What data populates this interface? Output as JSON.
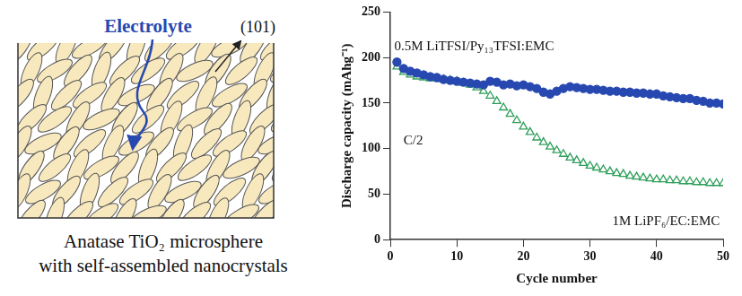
{
  "diagram": {
    "electrolyte_label": "Electrolyte",
    "plane_label": "(101)",
    "caption": [
      "Anatase TiO₂ microsphere",
      "with self-assembled nanocrystals"
    ]
  },
  "chart_data": {
    "type": "scatter",
    "x_label": "Cycle number",
    "y_label": "Discharge capacity (mAhg⁻¹)",
    "annotations": [
      "0.5M LiTFSI/Py₁₃TFSI:EMC",
      "C/2",
      "1M LiPF₆/EC:EMC"
    ],
    "x": [
      1,
      2,
      3,
      4,
      5,
      6,
      7,
      8,
      9,
      10,
      11,
      12,
      13,
      14,
      15,
      16,
      17,
      18,
      19,
      20,
      21,
      22,
      23,
      24,
      25,
      26,
      27,
      28,
      29,
      30,
      31,
      32,
      33,
      34,
      35,
      36,
      37,
      38,
      39,
      40,
      41,
      42,
      43,
      44,
      45,
      46,
      47,
      48,
      49,
      50
    ],
    "series": [
      {
        "name": "0.5M LiTFSI/Py₁₃TFSI:EMC",
        "color": "#2748b0",
        "marker": "filled-circle",
        "values": [
          195,
          188,
          185,
          183,
          181,
          179,
          178,
          176,
          175,
          174,
          173,
          172,
          171,
          170,
          174,
          173,
          170,
          171,
          169,
          170,
          168,
          166,
          162,
          160,
          163,
          166,
          168,
          167,
          166,
          165,
          165,
          164,
          163,
          163,
          162,
          162,
          161,
          161,
          160,
          160,
          158,
          157,
          156,
          155,
          155,
          153,
          152,
          150,
          150,
          149
        ]
      },
      {
        "name": "1M LiPF₆/EC:EMC",
        "color": "#2e9e5a",
        "marker": "open-triangle",
        "values": [
          190,
          184,
          181,
          179,
          178,
          177,
          177,
          176,
          175,
          174,
          172,
          170,
          167,
          163,
          158,
          152,
          145,
          138,
          131,
          124,
          118,
          112,
          107,
          102,
          98,
          94,
          90,
          87,
          84,
          81,
          79,
          77,
          75,
          73,
          72,
          70,
          69,
          68,
          67,
          66,
          66,
          65,
          65,
          64,
          64,
          63,
          63,
          62,
          62,
          62
        ]
      }
    ],
    "xlim": [
      0,
      50
    ],
    "xticks": [
      0,
      10,
      20,
      30,
      40,
      50
    ],
    "ylim": [
      0,
      250
    ],
    "yticks": [
      0,
      50,
      100,
      150,
      200,
      250
    ],
    "grid": false
  }
}
